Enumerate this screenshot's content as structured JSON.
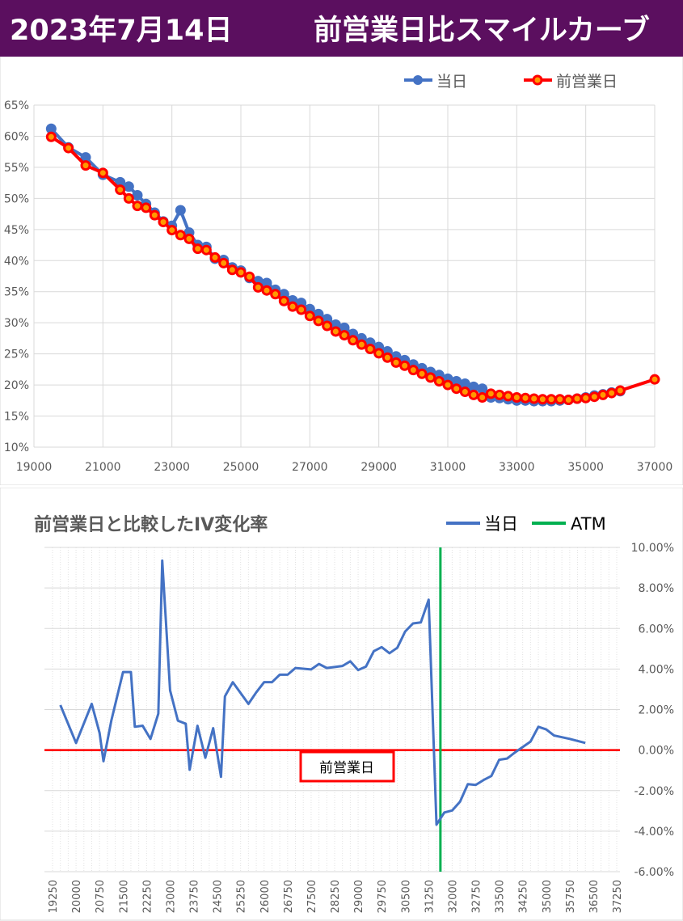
{
  "header": {
    "date": "2023年7月14日",
    "title": "前営業日比スマイルカーブ"
  },
  "colors": {
    "header_bg": "#5b0f5f",
    "today": "#4472c4",
    "previous": "#ff0000",
    "previous_marker_fill": "#ff9900",
    "atm": "#00b050"
  },
  "chart_data": [
    {
      "type": "line",
      "title": "",
      "xlabel": "",
      "ylabel": "",
      "xlim": [
        19000,
        37000
      ],
      "ylim": [
        0.1,
        0.65
      ],
      "x_ticks": [
        "19000",
        "21000",
        "23000",
        "25000",
        "27000",
        "29000",
        "31000",
        "33000",
        "35000",
        "37000"
      ],
      "y_ticks": [
        "10%",
        "15%",
        "20%",
        "25%",
        "30%",
        "35%",
        "40%",
        "45%",
        "50%",
        "55%",
        "60%",
        "65%"
      ],
      "grid": true,
      "legend_position": "top-right",
      "series": [
        {
          "name": "当日",
          "color": "#4472c4",
          "points": [
            [
              19500,
              0.612
            ],
            [
              20000,
              0.582
            ],
            [
              20500,
              0.566
            ],
            [
              21000,
              0.538
            ],
            [
              21500,
              0.526
            ],
            [
              21750,
              0.519
            ],
            [
              22000,
              0.505
            ],
            [
              22250,
              0.491
            ],
            [
              22500,
              0.477
            ],
            [
              22750,
              0.463
            ],
            [
              23000,
              0.456
            ],
            [
              23250,
              0.481
            ],
            [
              23500,
              0.445
            ],
            [
              23750,
              0.425
            ],
            [
              24000,
              0.422
            ],
            [
              24250,
              0.403
            ],
            [
              24500,
              0.401
            ],
            [
              24750,
              0.389
            ],
            [
              25000,
              0.384
            ],
            [
              25250,
              0.372
            ],
            [
              25500,
              0.367
            ],
            [
              25750,
              0.364
            ],
            [
              26000,
              0.353
            ],
            [
              26250,
              0.346
            ],
            [
              26500,
              0.336
            ],
            [
              26750,
              0.332
            ],
            [
              27000,
              0.322
            ],
            [
              27250,
              0.314
            ],
            [
              27500,
              0.306
            ],
            [
              27750,
              0.297
            ],
            [
              28000,
              0.292
            ],
            [
              28250,
              0.282
            ],
            [
              28500,
              0.275
            ],
            [
              28750,
              0.268
            ],
            [
              29000,
              0.261
            ],
            [
              29250,
              0.254
            ],
            [
              29500,
              0.246
            ],
            [
              29750,
              0.24
            ],
            [
              30000,
              0.233
            ],
            [
              30250,
              0.227
            ],
            [
              30500,
              0.221
            ],
            [
              30750,
              0.216
            ],
            [
              31000,
              0.21
            ],
            [
              31250,
              0.206
            ],
            [
              31500,
              0.202
            ],
            [
              31750,
              0.197
            ],
            [
              32000,
              0.194
            ],
            [
              32250,
              0.18
            ],
            [
              32500,
              0.179
            ],
            [
              32750,
              0.177
            ],
            [
              33000,
              0.175
            ],
            [
              33250,
              0.175
            ],
            [
              33500,
              0.174
            ],
            [
              33750,
              0.174
            ],
            [
              34000,
              0.174
            ],
            [
              34250,
              0.175
            ],
            [
              34500,
              0.176
            ],
            [
              34750,
              0.178
            ],
            [
              35000,
              0.18
            ],
            [
              35250,
              0.183
            ],
            [
              35500,
              0.185
            ],
            [
              35750,
              0.188
            ],
            [
              36000,
              0.19
            ]
          ]
        },
        {
          "name": "前営業日",
          "color": "#ff0000",
          "points": [
            [
              19500,
              0.599
            ],
            [
              20000,
              0.581
            ],
            [
              20500,
              0.553
            ],
            [
              21000,
              0.541
            ],
            [
              21500,
              0.514
            ],
            [
              21750,
              0.5
            ],
            [
              22000,
              0.488
            ],
            [
              22250,
              0.485
            ],
            [
              22500,
              0.473
            ],
            [
              22750,
              0.462
            ],
            [
              23000,
              0.449
            ],
            [
              23250,
              0.441
            ],
            [
              23500,
              0.435
            ],
            [
              23750,
              0.419
            ],
            [
              24000,
              0.417
            ],
            [
              24250,
              0.405
            ],
            [
              24500,
              0.396
            ],
            [
              24750,
              0.385
            ],
            [
              25000,
              0.381
            ],
            [
              25250,
              0.374
            ],
            [
              25500,
              0.357
            ],
            [
              25750,
              0.352
            ],
            [
              26000,
              0.346
            ],
            [
              26250,
              0.335
            ],
            [
              26500,
              0.326
            ],
            [
              26750,
              0.321
            ],
            [
              27000,
              0.311
            ],
            [
              27250,
              0.303
            ],
            [
              27500,
              0.295
            ],
            [
              27750,
              0.286
            ],
            [
              28000,
              0.28
            ],
            [
              28250,
              0.272
            ],
            [
              28500,
              0.265
            ],
            [
              28750,
              0.258
            ],
            [
              29000,
              0.251
            ],
            [
              29250,
              0.244
            ],
            [
              29500,
              0.236
            ],
            [
              29750,
              0.231
            ],
            [
              30000,
              0.224
            ],
            [
              30250,
              0.218
            ],
            [
              30500,
              0.212
            ],
            [
              30750,
              0.206
            ],
            [
              31000,
              0.2
            ],
            [
              31250,
              0.194
            ],
            [
              31500,
              0.189
            ],
            [
              31750,
              0.184
            ],
            [
              32000,
              0.18
            ],
            [
              32250,
              0.186
            ],
            [
              32500,
              0.184
            ],
            [
              32750,
              0.182
            ],
            [
              33000,
              0.18
            ],
            [
              33250,
              0.179
            ],
            [
              33500,
              0.178
            ],
            [
              33750,
              0.177
            ],
            [
              34000,
              0.177
            ],
            [
              34250,
              0.177
            ],
            [
              34500,
              0.176
            ],
            [
              34750,
              0.178
            ],
            [
              35000,
              0.179
            ],
            [
              35250,
              0.181
            ],
            [
              35500,
              0.184
            ],
            [
              35750,
              0.187
            ],
            [
              36000,
              0.191
            ],
            [
              37000,
              0.209
            ]
          ]
        }
      ]
    },
    {
      "type": "line",
      "title": "前営業日と比較したIV変化率",
      "xlabel": "",
      "ylabel": "",
      "categories": [
        "19250",
        "19500",
        "19750",
        "20000",
        "20250",
        "20500",
        "20750",
        "21000",
        "21250",
        "21500",
        "21750",
        "22000",
        "22250",
        "22500",
        "22750",
        "23000",
        "23250",
        "23500",
        "23750",
        "24000",
        "24250",
        "24500",
        "24750",
        "25000",
        "25250",
        "25500",
        "25750",
        "26000",
        "26250",
        "26500",
        "26750",
        "27000",
        "27250",
        "27500",
        "27750",
        "28000",
        "28250",
        "28500",
        "28750",
        "29000",
        "29250",
        "29500",
        "29750",
        "30000",
        "30250",
        "30500",
        "30750",
        "31000",
        "31250",
        "31500",
        "31750",
        "32000",
        "32250",
        "32500",
        "32750",
        "33000",
        "33250",
        "33500",
        "33750",
        "34000",
        "34250",
        "34500",
        "34750",
        "35000",
        "35250",
        "35500",
        "35750",
        "36000",
        "36250",
        "36500",
        "36750",
        "37000",
        "37250"
      ],
      "tick_labels": [
        "19250",
        "20000",
        "20750",
        "21500",
        "22250",
        "23000",
        "23750",
        "24500",
        "25250",
        "26000",
        "26750",
        "27500",
        "28250",
        "29000",
        "29750",
        "30500",
        "31250",
        "32000",
        "32750",
        "33500",
        "34250",
        "35000",
        "35750",
        "36500",
        "37250"
      ],
      "y_ticks": [
        "10.00%",
        "8.00%",
        "6.00%",
        "4.00%",
        "2.00%",
        "0.00%",
        "-2.00%",
        "-4.00%",
        "-6.00%"
      ],
      "ylim": [
        -0.06,
        0.1
      ],
      "grid": true,
      "legend_position": "top-right",
      "series": [
        {
          "name": "当日",
          "color": "#4472c4",
          "points": [
            [
              19500,
              0.0222
            ],
            [
              20000,
              0.0035
            ],
            [
              20500,
              0.0228
            ],
            [
              20750,
              0.0085
            ],
            [
              20875,
              -0.0055
            ],
            [
              21125,
              0.0145
            ],
            [
              21500,
              0.0385
            ],
            [
              21750,
              0.0385
            ],
            [
              21875,
              0.0115
            ],
            [
              22125,
              0.012
            ],
            [
              22375,
              0.0055
            ],
            [
              22625,
              0.018
            ],
            [
              22750,
              0.0935
            ],
            [
              23000,
              0.0295
            ],
            [
              23250,
              0.0145
            ],
            [
              23500,
              0.013
            ],
            [
              23625,
              -0.0097
            ],
            [
              23875,
              0.012
            ],
            [
              24125,
              -0.0038
            ],
            [
              24375,
              0.0108
            ],
            [
              24625,
              -0.0132
            ],
            [
              24750,
              0.0265
            ],
            [
              25000,
              0.0335
            ],
            [
              25500,
              0.0228
            ],
            [
              25750,
              0.0285
            ],
            [
              26000,
              0.0335
            ],
            [
              26250,
              0.0335
            ],
            [
              26500,
              0.0372
            ],
            [
              26750,
              0.0372
            ],
            [
              27000,
              0.0405
            ],
            [
              27500,
              0.0398
            ],
            [
              27750,
              0.0425
            ],
            [
              28000,
              0.0405
            ],
            [
              28500,
              0.0415
            ],
            [
              28750,
              0.0438
            ],
            [
              29000,
              0.0395
            ],
            [
              29250,
              0.0412
            ],
            [
              29500,
              0.0488
            ],
            [
              29750,
              0.0508
            ],
            [
              30000,
              0.0478
            ],
            [
              30250,
              0.0505
            ],
            [
              30500,
              0.0585
            ],
            [
              30750,
              0.0625
            ],
            [
              31000,
              0.063
            ],
            [
              31250,
              0.0742
            ],
            [
              31500,
              -0.0368
            ],
            [
              31750,
              -0.0308
            ],
            [
              32000,
              -0.0298
            ],
            [
              32250,
              -0.0255
            ],
            [
              32500,
              -0.0168
            ],
            [
              32750,
              -0.0172
            ],
            [
              33000,
              -0.0148
            ],
            [
              33250,
              -0.0128
            ],
            [
              33500,
              -0.0048
            ],
            [
              33750,
              -0.0042
            ],
            [
              34000,
              -0.0012
            ],
            [
              34250,
              0.0015
            ],
            [
              34500,
              0.0042
            ],
            [
              34750,
              0.0115
            ],
            [
              35000,
              0.0102
            ],
            [
              35250,
              0.0072
            ],
            [
              35750,
              0.0055
            ],
            [
              36250,
              0.0035
            ]
          ]
        },
        {
          "name": "ATM",
          "color": "#00b050",
          "x_value": 31625
        }
      ],
      "annotations": [
        {
          "text": "前営業日",
          "y": 0
        }
      ]
    }
  ]
}
